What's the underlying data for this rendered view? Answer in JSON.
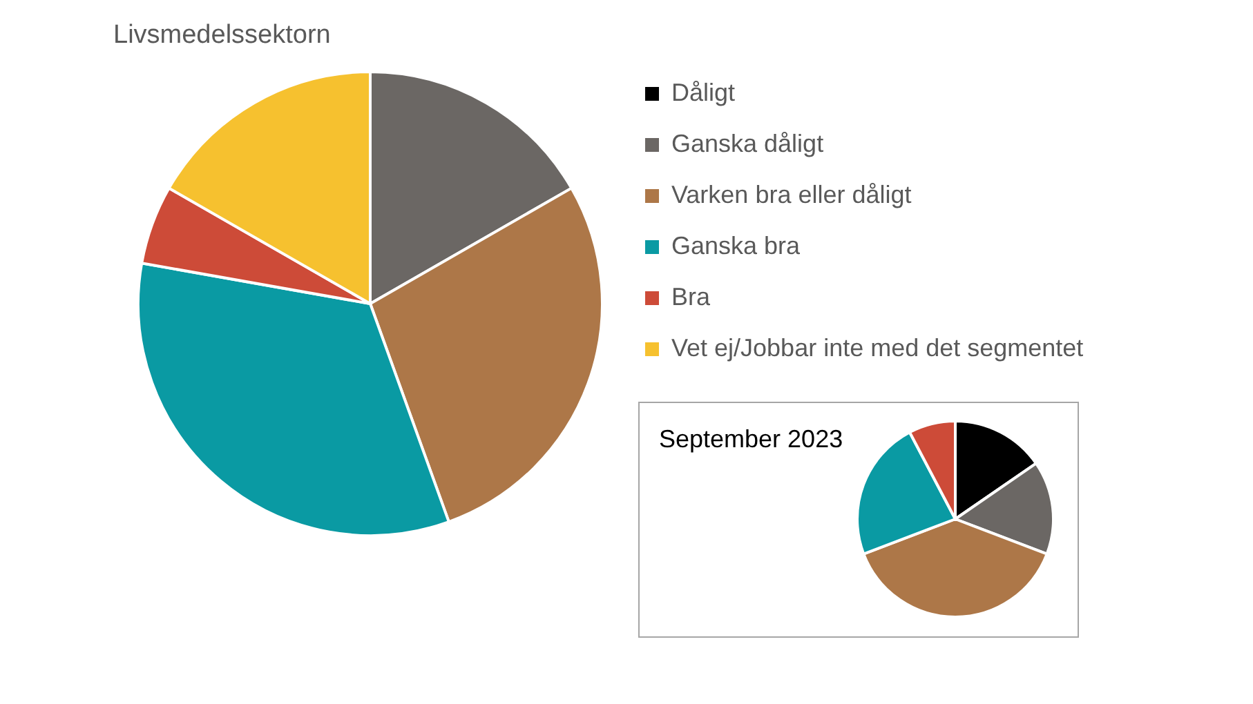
{
  "chart_data": [
    {
      "type": "pie",
      "title": "Livsmedelssektorn",
      "categories": [
        "Dåligt",
        "Ganska dåligt",
        "Varken bra eller dåligt",
        "Ganska bra",
        "Bra",
        "Vet ej/Jobbar inte med det segmentet"
      ],
      "values": [
        0,
        16.7,
        27.8,
        33.3,
        5.5,
        16.7
      ],
      "colors": [
        "#000000",
        "#6b6764",
        "#ad7748",
        "#0a9aa3",
        "#cd4b38",
        "#f6c12f"
      ],
      "legend": "right"
    },
    {
      "type": "pie",
      "title": "September 2023",
      "values": [
        15.4,
        15.4,
        38.4,
        23.1,
        7.7,
        0
      ],
      "colors": [
        "#000000",
        "#6b6764",
        "#ad7748",
        "#0a9aa3",
        "#cd4b38",
        "#f6c12f"
      ]
    }
  ]
}
